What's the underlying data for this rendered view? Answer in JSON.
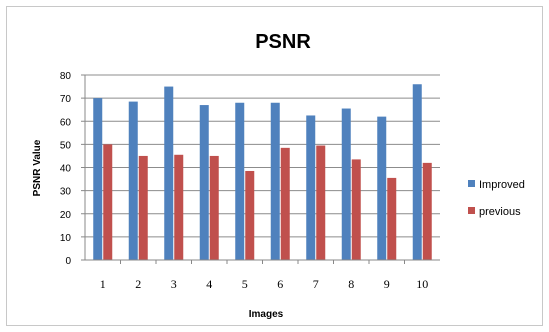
{
  "chart_data": {
    "type": "bar",
    "title": "PSNR",
    "xlabel": "Images",
    "ylabel": "PSNR Value",
    "categories": [
      "1",
      "2",
      "3",
      "4",
      "5",
      "6",
      "7",
      "8",
      "9",
      "10"
    ],
    "series": [
      {
        "name": "Improved",
        "color": "#4f81bd",
        "values": [
          70,
          68.5,
          75,
          67,
          68,
          68,
          62.5,
          65.5,
          62,
          76
        ]
      },
      {
        "name": "previous",
        "color": "#c0504d",
        "values": [
          50,
          45,
          45.5,
          45,
          38.5,
          48.5,
          49.5,
          43.5,
          35.5,
          42
        ]
      }
    ],
    "ylim": [
      0,
      80
    ],
    "yticks": [
      "0",
      "10",
      "20",
      "30",
      "40",
      "50",
      "60",
      "70",
      "80"
    ],
    "grid": true,
    "legend": "right"
  }
}
